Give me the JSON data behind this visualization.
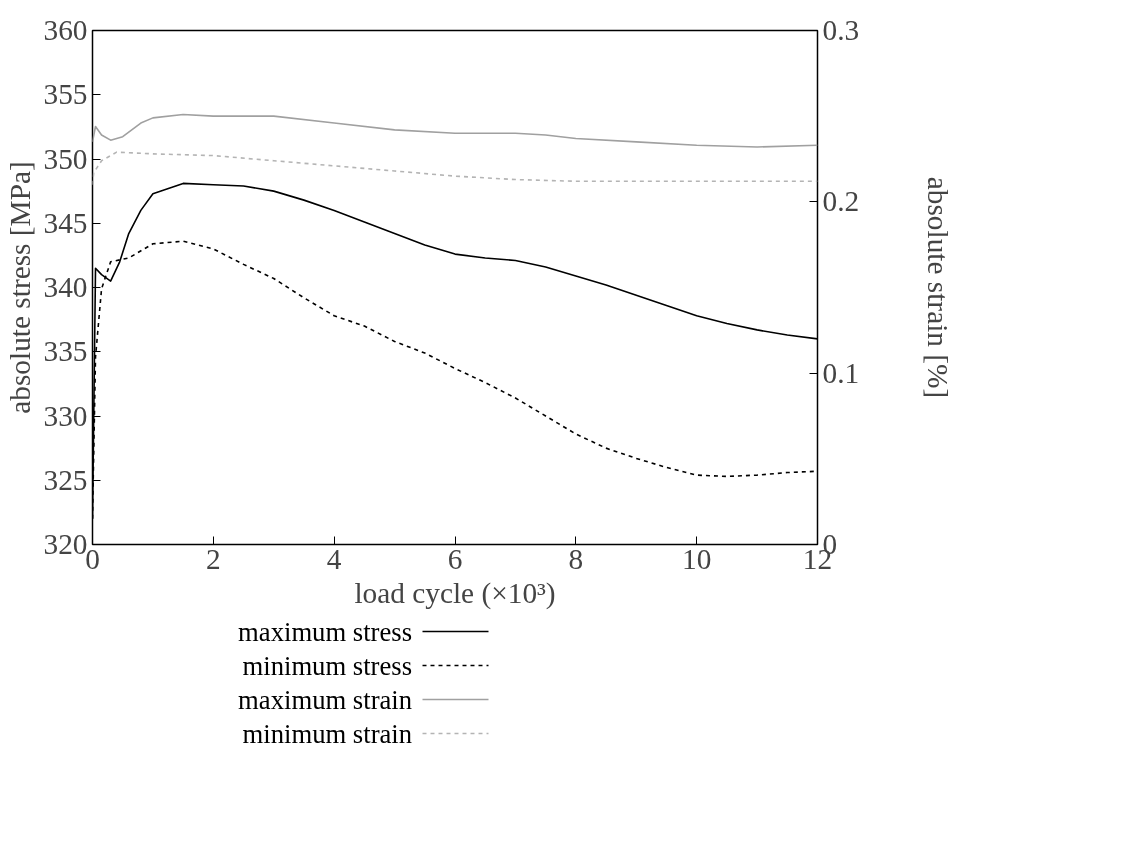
{
  "chart_data": {
    "type": "line",
    "xlabel": "load cycle (×10³)",
    "ylabel": "absolute stress [MPa]",
    "y2label": "absolute strain [%]",
    "xlim": [
      0,
      12
    ],
    "xticks": [
      0,
      2,
      4,
      6,
      8,
      10,
      12
    ],
    "ylim": [
      320,
      360
    ],
    "yticks": [
      320,
      325,
      330,
      335,
      340,
      345,
      350,
      355,
      360
    ],
    "y2lim": [
      0,
      0.3
    ],
    "y2ticks": [
      0,
      0.1,
      0.2,
      0.3
    ],
    "grid": false,
    "legend": "bottom",
    "marker": "none",
    "series": [
      {
        "name": "maximum stress",
        "color": "#000000",
        "line_style": "solid",
        "x": [
          0,
          0.05,
          0.15,
          0.3,
          0.45,
          0.6,
          0.8,
          1,
          1.5,
          2,
          2.5,
          3,
          3.5,
          4,
          4.5,
          5,
          5.5,
          6,
          6.5,
          7,
          7.5,
          8,
          8.5,
          9,
          9.5,
          10,
          10.5,
          11,
          11.5,
          12
        ],
        "values": [
          322,
          341.5,
          341,
          340.5,
          342,
          344.2,
          346,
          347.3,
          348.1,
          348,
          347.9,
          347.5,
          346.8,
          346,
          345.1,
          344.2,
          343.3,
          342.6,
          342.3,
          342.1,
          341.6,
          340.9,
          340.2,
          339.4,
          338.6,
          337.8,
          337.2,
          336.7,
          336.3,
          336
        ]
      },
      {
        "name": "minimum stress",
        "color": "#000000",
        "line_style": "dashed",
        "x": [
          0,
          0.05,
          0.15,
          0.3,
          0.6,
          1,
          1.5,
          2,
          2.5,
          3,
          3.5,
          4,
          4.5,
          5,
          5.5,
          6,
          6.5,
          7,
          7.5,
          8,
          8.5,
          9,
          9.5,
          10,
          10.5,
          11,
          11.5,
          12
        ],
        "values": [
          322,
          334.6,
          339.9,
          342,
          342.3,
          343.4,
          343.6,
          343,
          341.8,
          340.7,
          339.2,
          337.8,
          337,
          335.8,
          334.9,
          333.7,
          332.6,
          331.4,
          330,
          328.6,
          327.5,
          326.7,
          326,
          325.4,
          325.3,
          325.4,
          325.6,
          325.7
        ]
      },
      {
        "name": "maximum strain",
        "color": "#a0a0a0",
        "line_style": "solid",
        "axis": "y2",
        "x": [
          0,
          0.05,
          0.15,
          0.3,
          0.5,
          0.8,
          1,
          1.5,
          2,
          3,
          4,
          5,
          6,
          7,
          7.5,
          8,
          9,
          10,
          11,
          12
        ],
        "values": [
          0.235,
          0.244,
          0.239,
          0.236,
          0.238,
          0.246,
          0.249,
          0.251,
          0.25,
          0.25,
          0.246,
          0.242,
          0.24,
          0.24,
          0.239,
          0.237,
          0.235,
          0.233,
          0.232,
          0.233
        ]
      },
      {
        "name": "minimum strain",
        "color": "#b4b4b4",
        "line_style": "dashed",
        "axis": "y2",
        "x": [
          0,
          0.02,
          0.15,
          0.4,
          1,
          2,
          3,
          4,
          5,
          6,
          7,
          8,
          9,
          10,
          11,
          12
        ],
        "values": [
          0.21,
          0.217,
          0.224,
          0.229,
          0.228,
          0.227,
          0.224,
          0.221,
          0.218,
          0.215,
          0.213,
          0.212,
          0.212,
          0.212,
          0.212,
          0.212
        ]
      }
    ]
  }
}
